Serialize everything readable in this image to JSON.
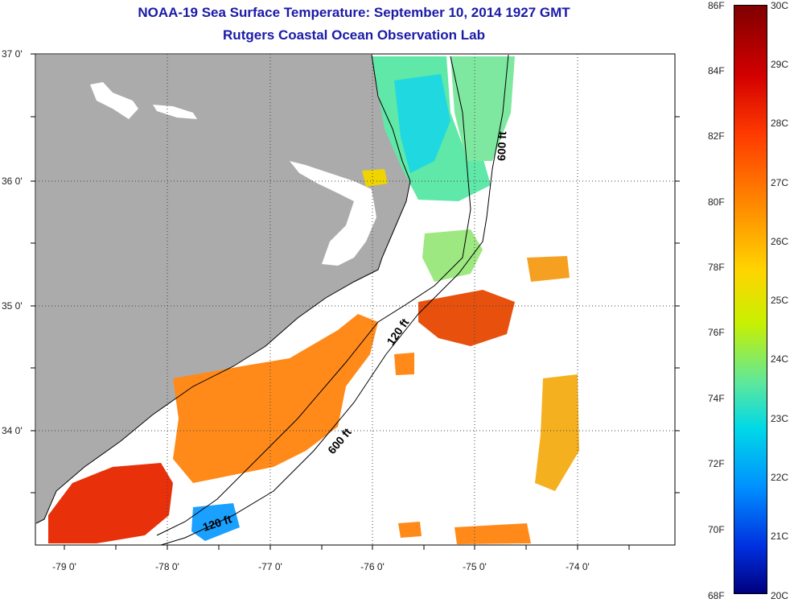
{
  "title": {
    "line1": "NOAA-19 Sea Surface Temperature:  September 10, 2014 1927 GMT",
    "line2": "Rutgers Coastal Ocean Observation Lab"
  },
  "axes": {
    "lat_labels": [
      "37 0'",
      "36 0'",
      "35 0'",
      "34 0'"
    ],
    "lon_labels": [
      "-79 0'",
      "-78 0'",
      "-77 0'",
      "-76 0'",
      "-75 0'",
      "-74 0'"
    ]
  },
  "colorbar": {
    "fahrenheit": [
      "86F",
      "84F",
      "82F",
      "80F",
      "78F",
      "76F",
      "74F",
      "72F",
      "70F",
      "68F"
    ],
    "celsius": [
      "30C",
      "29C",
      "28C",
      "27C",
      "26C",
      "25C",
      "24C",
      "23C",
      "22C",
      "21C",
      "20C"
    ]
  },
  "contours": {
    "inner_a": "120 ft",
    "inner_b": "120 ft",
    "outer_a": "600 ft",
    "outer_b": "600 ft"
  },
  "colors": {
    "land": "#ababab",
    "title": "#1a1aa8",
    "warm": "#ff7a10",
    "hot": "#e8300a",
    "yellow": "#f0d400",
    "green": "#a8ec5a",
    "cyan": "#30e0c0",
    "blue": "#1070ff"
  }
}
